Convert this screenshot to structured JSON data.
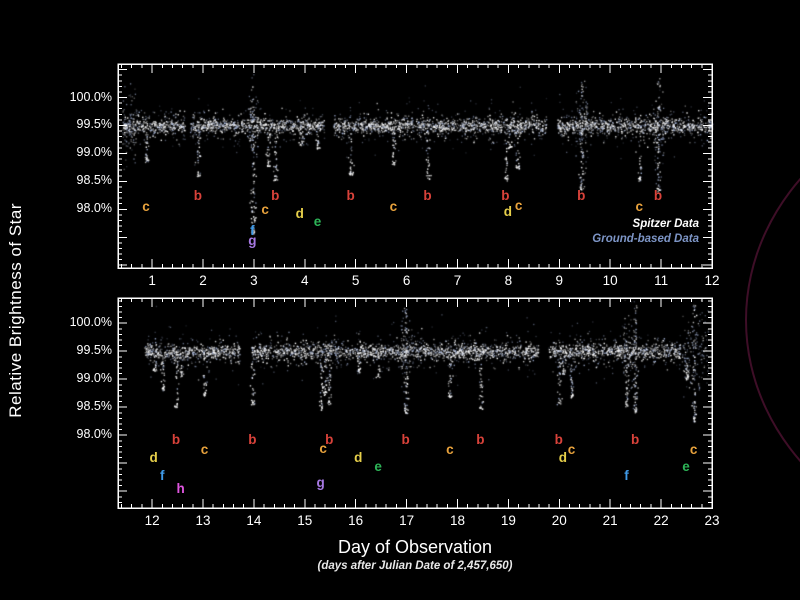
{
  "figure": {
    "ylabel": "Relative Brightness of Star",
    "xlabel": "Day of Observation",
    "xlabel_sub": "(days after Julian Date of 2,457,650)",
    "legend_spitzer": "Spitzer Data",
    "legend_ground": "Ground-based Data",
    "legend_spitzer_color": "#ffffff",
    "legend_ground_color": "#7d95c6",
    "background_color": "#000000",
    "axis_color": "#ffffff",
    "orbit_arc_color": "#94225c"
  },
  "chart_data": {
    "type": "scatter",
    "title": "",
    "xlabel": "Day of Observation (days after Julian Date of 2,457,650)",
    "ylabel": "Relative Brightness of Star",
    "baseline_brightness_pct": 99.5,
    "y_tick_labels": [
      "100.0%",
      "99.5%",
      "99.0%",
      "98.5%",
      "98.0%"
    ],
    "y_tick_values": [
      100.0,
      99.5,
      99.0,
      98.5,
      98.0
    ],
    "legend": [
      "Spitzer Data",
      "Ground-based Data"
    ],
    "legend_position": "lower right of top panel",
    "grid": false,
    "planet_colors": {
      "b": "#d8423a",
      "c": "#e8a23c",
      "d": "#e6cf4a",
      "e": "#2db457",
      "f": "#3f9ae8",
      "g": "#a678e2",
      "h": "#df55df"
    },
    "panels": [
      {
        "name": "days 1-12",
        "x_ticks": [
          1,
          2,
          3,
          4,
          5,
          6,
          7,
          8,
          9,
          10,
          11,
          12
        ],
        "xlim": [
          0.33,
          12.0
        ],
        "ylim": [
          96.95,
          100.6
        ],
        "band": {
          "start": 0.42,
          "end": 12.0,
          "gaps": [
            [
              1.64,
              1.74
            ],
            [
              4.38,
              4.56
            ],
            [
              8.74,
              8.96
            ]
          ]
        },
        "ground_clusters": [
          [
            0.4,
            0.7
          ],
          [
            2.88,
            3.08
          ],
          [
            9.3,
            9.55
          ],
          [
            10.86,
            11.04
          ]
        ],
        "transits": [
          {
            "planet": "c",
            "day": 0.88,
            "depth": 98.85
          },
          {
            "planet": "b",
            "day": 1.9,
            "depth": 98.6
          },
          {
            "planet": "f",
            "day": 2.96,
            "depth": 97.55,
            "tall": true
          },
          {
            "planet": "g",
            "day": 2.99,
            "depth": 97.8
          },
          {
            "planet": "c",
            "day": 3.28,
            "depth": 98.78
          },
          {
            "planet": "b",
            "day": 3.41,
            "depth": 98.52
          },
          {
            "planet": "d",
            "day": 3.91,
            "depth": 99.15
          },
          {
            "planet": "e",
            "day": 4.24,
            "depth": 99.08
          },
          {
            "planet": "b",
            "day": 4.9,
            "depth": 98.6
          },
          {
            "planet": "c",
            "day": 5.74,
            "depth": 98.8
          },
          {
            "planet": "b",
            "day": 6.41,
            "depth": 98.55
          },
          {
            "planet": "b",
            "day": 7.95,
            "depth": 98.5
          },
          {
            "planet": "d",
            "day": 8.01,
            "depth": 99.1
          },
          {
            "planet": "c",
            "day": 8.17,
            "depth": 98.72
          },
          {
            "planet": "b",
            "day": 9.43,
            "depth": 98.35,
            "tall": true
          },
          {
            "planet": "c",
            "day": 10.57,
            "depth": 98.5
          },
          {
            "planet": "b",
            "day": 10.94,
            "depth": 98.3,
            "tall": true
          }
        ],
        "planet_labels": [
          {
            "planet": "c",
            "day": 0.88,
            "y": 98.03
          },
          {
            "planet": "b",
            "day": 1.9,
            "y": 98.22
          },
          {
            "planet": "c",
            "day": 3.22,
            "y": 97.97
          },
          {
            "planet": "b",
            "day": 3.42,
            "y": 98.22
          },
          {
            "planet": "f",
            "day": 2.97,
            "y": 97.6
          },
          {
            "planet": "g",
            "day": 2.97,
            "y": 97.42
          },
          {
            "planet": "d",
            "day": 3.9,
            "y": 97.9
          },
          {
            "planet": "e",
            "day": 4.25,
            "y": 97.76
          },
          {
            "planet": "b",
            "day": 4.9,
            "y": 98.22
          },
          {
            "planet": "c",
            "day": 5.74,
            "y": 98.03
          },
          {
            "planet": "b",
            "day": 6.41,
            "y": 98.22
          },
          {
            "planet": "b",
            "day": 7.94,
            "y": 98.22
          },
          {
            "planet": "d",
            "day": 7.99,
            "y": 97.93
          },
          {
            "planet": "c",
            "day": 8.2,
            "y": 98.05
          },
          {
            "planet": "b",
            "day": 9.43,
            "y": 98.22
          },
          {
            "planet": "c",
            "day": 10.57,
            "y": 98.03
          },
          {
            "planet": "b",
            "day": 10.94,
            "y": 98.22
          }
        ]
      },
      {
        "name": "days 12-23",
        "x_ticks": [
          12,
          13,
          14,
          15,
          16,
          17,
          18,
          19,
          20,
          21,
          22,
          23
        ],
        "xlim": [
          11.33,
          23.0
        ],
        "ylim": [
          96.7,
          100.45
        ],
        "band": {
          "start": 11.84,
          "end": 22.37,
          "gaps": [
            [
              13.72,
              13.94
            ],
            [
              19.58,
              19.78
            ]
          ]
        },
        "ground_clusters": [
          [
            16.88,
            17.12
          ],
          [
            21.25,
            21.5
          ],
          [
            22.4,
            22.92
          ]
        ],
        "transits": [
          {
            "planet": "d",
            "day": 12.04,
            "depth": 99.15
          },
          {
            "planet": "f",
            "day": 12.2,
            "depth": 98.8
          },
          {
            "planet": "b",
            "day": 12.47,
            "depth": 98.5
          },
          {
            "planet": "h",
            "day": 12.57,
            "depth": 99.05
          },
          {
            "planet": "c",
            "day": 13.03,
            "depth": 98.68
          },
          {
            "planet": "b",
            "day": 13.97,
            "depth": 98.55
          },
          {
            "planet": "g",
            "day": 15.31,
            "depth": 98.45
          },
          {
            "planet": "c",
            "day": 15.38,
            "depth": 98.72
          },
          {
            "planet": "b",
            "day": 15.48,
            "depth": 98.55
          },
          {
            "planet": "d",
            "day": 16.05,
            "depth": 99.12
          },
          {
            "planet": "e",
            "day": 16.44,
            "depth": 99.02
          },
          {
            "planet": "b",
            "day": 16.98,
            "depth": 98.4,
            "tall": true
          },
          {
            "planet": "c",
            "day": 17.85,
            "depth": 98.68
          },
          {
            "planet": "b",
            "day": 18.45,
            "depth": 98.45
          },
          {
            "planet": "b",
            "day": 19.99,
            "depth": 98.55
          },
          {
            "planet": "d",
            "day": 20.07,
            "depth": 99.1
          },
          {
            "planet": "c",
            "day": 20.23,
            "depth": 98.68
          },
          {
            "planet": "f",
            "day": 21.32,
            "depth": 98.52
          },
          {
            "planet": "b",
            "day": 21.49,
            "depth": 98.4,
            "tall": true
          },
          {
            "planet": "e",
            "day": 22.49,
            "depth": 99.0
          },
          {
            "planet": "c",
            "day": 22.64,
            "depth": 98.25,
            "tall": true
          }
        ],
        "planet_labels": [
          {
            "planet": "d",
            "day": 12.03,
            "y": 97.57
          },
          {
            "planet": "f",
            "day": 12.2,
            "y": 97.25
          },
          {
            "planet": "b",
            "day": 12.47,
            "y": 97.89
          },
          {
            "planet": "h",
            "day": 12.56,
            "y": 97.03
          },
          {
            "planet": "c",
            "day": 13.03,
            "y": 97.72
          },
          {
            "planet": "b",
            "day": 13.97,
            "y": 97.89
          },
          {
            "planet": "g",
            "day": 15.31,
            "y": 97.12
          },
          {
            "planet": "c",
            "day": 15.36,
            "y": 97.73
          },
          {
            "planet": "b",
            "day": 15.48,
            "y": 97.89
          },
          {
            "planet": "d",
            "day": 16.05,
            "y": 97.57
          },
          {
            "planet": "e",
            "day": 16.44,
            "y": 97.41
          },
          {
            "planet": "b",
            "day": 16.98,
            "y": 97.89
          },
          {
            "planet": "c",
            "day": 17.85,
            "y": 97.72
          },
          {
            "planet": "b",
            "day": 18.45,
            "y": 97.89
          },
          {
            "planet": "b",
            "day": 19.99,
            "y": 97.89
          },
          {
            "planet": "d",
            "day": 20.07,
            "y": 97.57
          },
          {
            "planet": "c",
            "day": 20.24,
            "y": 97.72
          },
          {
            "planet": "f",
            "day": 21.32,
            "y": 97.25
          },
          {
            "planet": "b",
            "day": 21.49,
            "y": 97.89
          },
          {
            "planet": "e",
            "day": 22.49,
            "y": 97.41
          },
          {
            "planet": "c",
            "day": 22.64,
            "y": 97.72
          }
        ]
      }
    ]
  }
}
